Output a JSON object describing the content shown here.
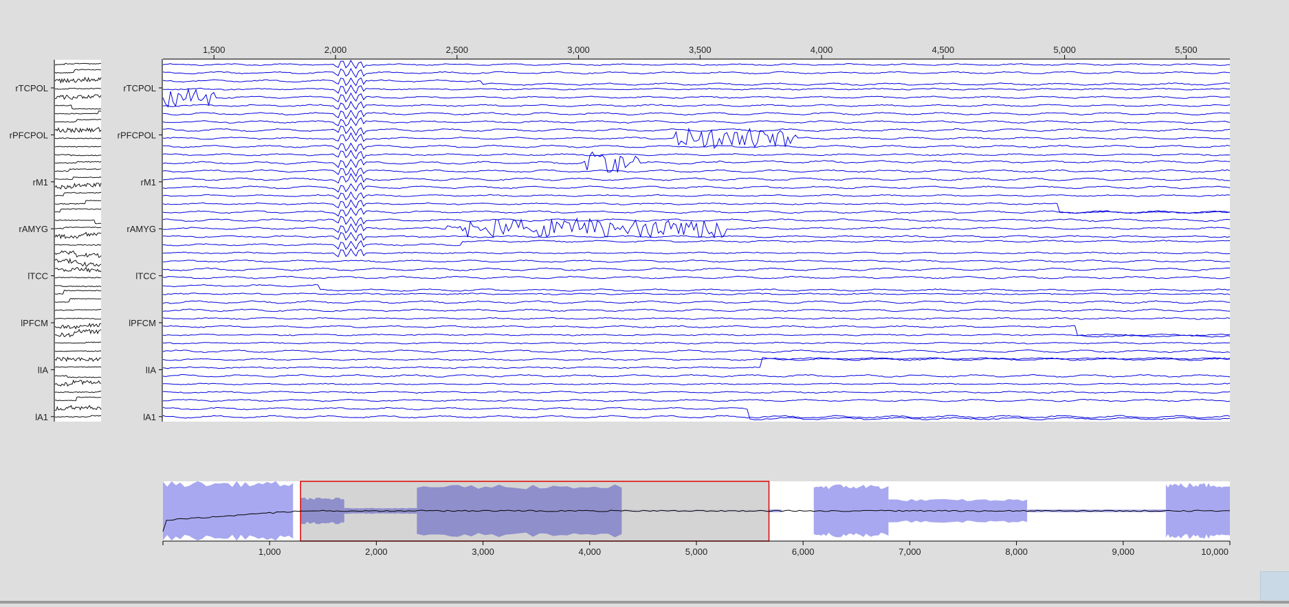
{
  "channels": [
    "rTCPOL",
    "rPFCPOL",
    "rM1",
    "rAMYG",
    "lTCC",
    "lPFCM",
    "lIA",
    "lA1"
  ],
  "colors": {
    "background": "#dedede",
    "trace": "#0000dd",
    "overview_trace": "#000000",
    "envelope": "#a8a8f0",
    "envelope_selected": "#8f8fcc",
    "selection_fill": "#cccccc",
    "selection_border": "#dd0000"
  },
  "chart_data": [
    {
      "type": "line",
      "role": "main-trace-view",
      "xlim": [
        1290,
        5680
      ],
      "x_ticks": [
        1500,
        2000,
        2500,
        3000,
        3500,
        4000,
        4500,
        5000,
        5500
      ],
      "x_tick_labels": [
        "1,500",
        "2,000",
        "2,500",
        "3,000",
        "3,500",
        "4,000",
        "4,500",
        "5,000",
        "5,500"
      ],
      "y_tick_labels": [
        "rTCPOL",
        "rPFCPOL",
        "rM1",
        "rAMYG",
        "lTCC",
        "lPFCM",
        "lIA",
        "lA1"
      ],
      "trace_count": 44,
      "grid": false
    },
    {
      "type": "line",
      "role": "channel-thumbnail",
      "y_tick_labels": [
        "rTCPOL",
        "rPFCPOL",
        "rM1",
        "rAMYG",
        "lTCC",
        "lPFCM",
        "lIA",
        "lA1"
      ]
    },
    {
      "type": "area",
      "role": "overview-navigator",
      "xlim": [
        0,
        10000
      ],
      "x_ticks": [
        1000,
        2000,
        3000,
        4000,
        5000,
        6000,
        7000,
        8000,
        9000,
        10000
      ],
      "x_tick_labels": [
        "1,000",
        "2,000",
        "3,000",
        "4,000",
        "5,000",
        "6,000",
        "7,000",
        "8,000",
        "9,000",
        "10,000"
      ],
      "selection": [
        1290,
        5680
      ],
      "envelope_segments": [
        {
          "x": [
            0,
            1220
          ],
          "amplitude": 1.0
        },
        {
          "x": [
            1290,
            1700
          ],
          "amplitude": 0.45
        },
        {
          "x": [
            1700,
            2380
          ],
          "amplitude": 0.1
        },
        {
          "x": [
            2380,
            4300
          ],
          "amplitude": 0.9
        },
        {
          "x": [
            4300,
            5800
          ],
          "amplitude": 0.05
        },
        {
          "x": [
            6100,
            6800
          ],
          "amplitude": 0.9
        },
        {
          "x": [
            6800,
            8100
          ],
          "amplitude": 0.4
        },
        {
          "x": [
            8100,
            9400
          ],
          "amplitude": 0.05
        },
        {
          "x": [
            9400,
            10000
          ],
          "amplitude": 0.95
        }
      ]
    }
  ]
}
